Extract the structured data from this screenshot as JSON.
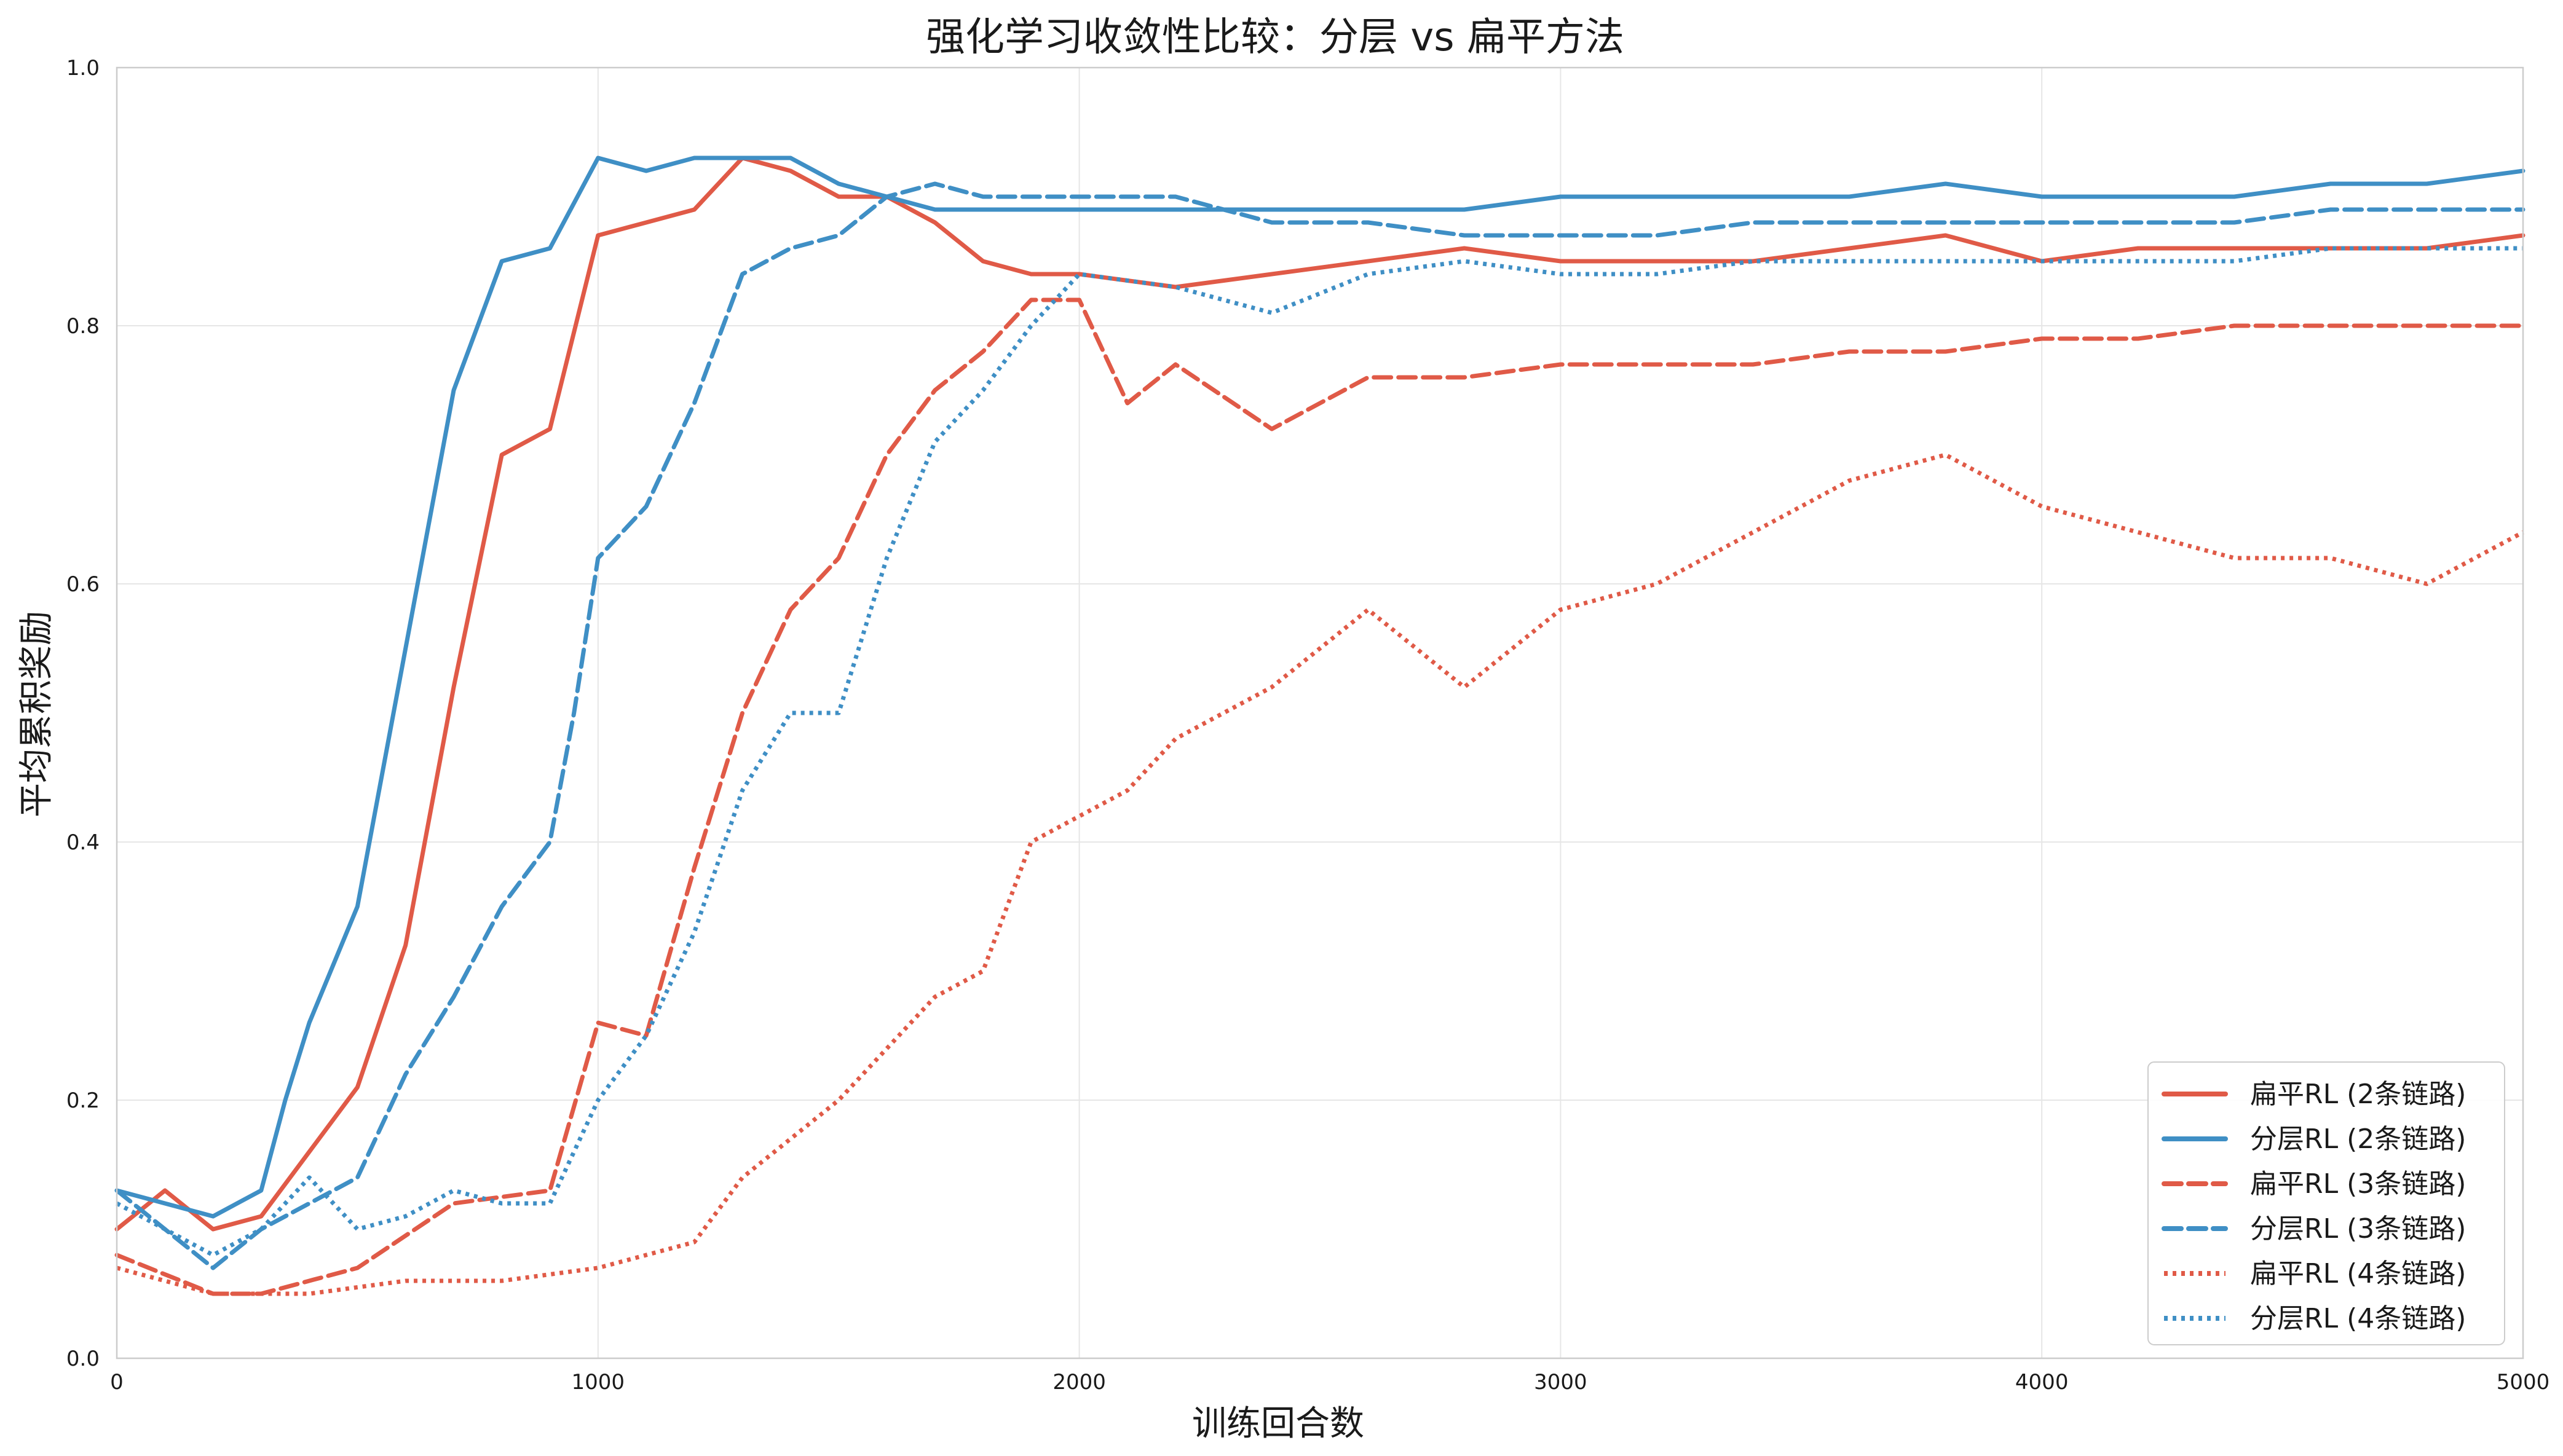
{
  "chart_data": {
    "type": "line",
    "title": "强化学习收敛性比较：分层 vs 扁平方法",
    "xlabel": "训练回合数",
    "ylabel": "平均累积奖励",
    "xlim": [
      0,
      5000
    ],
    "ylim": [
      0.0,
      1.0
    ],
    "xticks": [
      "0",
      "1000",
      "2000",
      "3000",
      "4000",
      "5000"
    ],
    "yticks": [
      "0.0",
      "0.2",
      "0.4",
      "0.6",
      "0.8",
      "1.0"
    ],
    "grid": true,
    "legend_position": "lower-right",
    "series": [
      {
        "name": "扁平RL (2条链路)",
        "color": "#e05a47",
        "dash": "solid",
        "points": [
          [
            0,
            0.1
          ],
          [
            100,
            0.13
          ],
          [
            200,
            0.1
          ],
          [
            300,
            0.11
          ],
          [
            400,
            0.16
          ],
          [
            500,
            0.21
          ],
          [
            600,
            0.32
          ],
          [
            700,
            0.52
          ],
          [
            800,
            0.7
          ],
          [
            900,
            0.72
          ],
          [
            1000,
            0.87
          ],
          [
            1100,
            0.88
          ],
          [
            1200,
            0.89
          ],
          [
            1300,
            0.93
          ],
          [
            1400,
            0.92
          ],
          [
            1500,
            0.9
          ],
          [
            1600,
            0.9
          ],
          [
            1700,
            0.88
          ],
          [
            1800,
            0.85
          ],
          [
            1900,
            0.84
          ],
          [
            2000,
            0.84
          ],
          [
            2200,
            0.83
          ],
          [
            2400,
            0.84
          ],
          [
            2600,
            0.85
          ],
          [
            2800,
            0.86
          ],
          [
            3000,
            0.85
          ],
          [
            3200,
            0.85
          ],
          [
            3400,
            0.85
          ],
          [
            3600,
            0.86
          ],
          [
            3800,
            0.87
          ],
          [
            4000,
            0.85
          ],
          [
            4200,
            0.86
          ],
          [
            4400,
            0.86
          ],
          [
            4600,
            0.86
          ],
          [
            4800,
            0.86
          ],
          [
            5000,
            0.87
          ]
        ]
      },
      {
        "name": "分层RL (2条链路)",
        "color": "#3f8fc5",
        "dash": "solid",
        "points": [
          [
            0,
            0.13
          ],
          [
            100,
            0.12
          ],
          [
            200,
            0.11
          ],
          [
            300,
            0.13
          ],
          [
            350,
            0.2
          ],
          [
            400,
            0.26
          ],
          [
            500,
            0.35
          ],
          [
            600,
            0.55
          ],
          [
            700,
            0.75
          ],
          [
            800,
            0.85
          ],
          [
            900,
            0.86
          ],
          [
            1000,
            0.93
          ],
          [
            1100,
            0.92
          ],
          [
            1200,
            0.93
          ],
          [
            1300,
            0.93
          ],
          [
            1400,
            0.93
          ],
          [
            1500,
            0.91
          ],
          [
            1600,
            0.9
          ],
          [
            1700,
            0.89
          ],
          [
            1800,
            0.89
          ],
          [
            2000,
            0.89
          ],
          [
            2200,
            0.89
          ],
          [
            2400,
            0.89
          ],
          [
            2600,
            0.89
          ],
          [
            2800,
            0.89
          ],
          [
            3000,
            0.9
          ],
          [
            3200,
            0.9
          ],
          [
            3400,
            0.9
          ],
          [
            3600,
            0.9
          ],
          [
            3800,
            0.91
          ],
          [
            4000,
            0.9
          ],
          [
            4200,
            0.9
          ],
          [
            4400,
            0.9
          ],
          [
            4600,
            0.91
          ],
          [
            4800,
            0.91
          ],
          [
            5000,
            0.92
          ]
        ]
      },
      {
        "name": "扁平RL (3条链路)",
        "color": "#e05a47",
        "dash": "dashed",
        "points": [
          [
            0,
            0.08
          ],
          [
            200,
            0.05
          ],
          [
            300,
            0.05
          ],
          [
            500,
            0.07
          ],
          [
            700,
            0.12
          ],
          [
            900,
            0.13
          ],
          [
            1000,
            0.26
          ],
          [
            1100,
            0.25
          ],
          [
            1200,
            0.38
          ],
          [
            1300,
            0.5
          ],
          [
            1400,
            0.58
          ],
          [
            1500,
            0.62
          ],
          [
            1600,
            0.7
          ],
          [
            1700,
            0.75
          ],
          [
            1800,
            0.78
          ],
          [
            1900,
            0.82
          ],
          [
            2000,
            0.82
          ],
          [
            2100,
            0.74
          ],
          [
            2200,
            0.77
          ],
          [
            2400,
            0.72
          ],
          [
            2600,
            0.76
          ],
          [
            2800,
            0.76
          ],
          [
            3000,
            0.77
          ],
          [
            3200,
            0.77
          ],
          [
            3400,
            0.77
          ],
          [
            3600,
            0.78
          ],
          [
            3800,
            0.78
          ],
          [
            4000,
            0.79
          ],
          [
            4200,
            0.79
          ],
          [
            4400,
            0.8
          ],
          [
            4600,
            0.8
          ],
          [
            4800,
            0.8
          ],
          [
            5000,
            0.8
          ]
        ]
      },
      {
        "name": "分层RL (3条链路)",
        "color": "#3f8fc5",
        "dash": "dashed",
        "points": [
          [
            0,
            0.13
          ],
          [
            100,
            0.1
          ],
          [
            200,
            0.07
          ],
          [
            300,
            0.1
          ],
          [
            400,
            0.12
          ],
          [
            500,
            0.14
          ],
          [
            600,
            0.22
          ],
          [
            700,
            0.28
          ],
          [
            800,
            0.35
          ],
          [
            900,
            0.4
          ],
          [
            950,
            0.5
          ],
          [
            1000,
            0.62
          ],
          [
            1100,
            0.66
          ],
          [
            1200,
            0.74
          ],
          [
            1300,
            0.84
          ],
          [
            1400,
            0.86
          ],
          [
            1500,
            0.87
          ],
          [
            1600,
            0.9
          ],
          [
            1700,
            0.91
          ],
          [
            1800,
            0.9
          ],
          [
            2000,
            0.9
          ],
          [
            2200,
            0.9
          ],
          [
            2400,
            0.88
          ],
          [
            2600,
            0.88
          ],
          [
            2800,
            0.87
          ],
          [
            3000,
            0.87
          ],
          [
            3200,
            0.87
          ],
          [
            3400,
            0.88
          ],
          [
            3600,
            0.88
          ],
          [
            3800,
            0.88
          ],
          [
            4000,
            0.88
          ],
          [
            4200,
            0.88
          ],
          [
            4400,
            0.88
          ],
          [
            4600,
            0.89
          ],
          [
            4800,
            0.89
          ],
          [
            5000,
            0.89
          ]
        ]
      },
      {
        "name": "扁平RL (4条链路)",
        "color": "#e05a47",
        "dash": "dotted",
        "points": [
          [
            0,
            0.07
          ],
          [
            200,
            0.05
          ],
          [
            400,
            0.05
          ],
          [
            600,
            0.06
          ],
          [
            800,
            0.06
          ],
          [
            1000,
            0.07
          ],
          [
            1200,
            0.09
          ],
          [
            1300,
            0.14
          ],
          [
            1400,
            0.17
          ],
          [
            1500,
            0.2
          ],
          [
            1600,
            0.24
          ],
          [
            1700,
            0.28
          ],
          [
            1800,
            0.3
          ],
          [
            1900,
            0.4
          ],
          [
            2000,
            0.42
          ],
          [
            2100,
            0.44
          ],
          [
            2200,
            0.48
          ],
          [
            2300,
            0.5
          ],
          [
            2400,
            0.52
          ],
          [
            2600,
            0.58
          ],
          [
            2800,
            0.52
          ],
          [
            3000,
            0.58
          ],
          [
            3200,
            0.6
          ],
          [
            3400,
            0.64
          ],
          [
            3600,
            0.68
          ],
          [
            3800,
            0.7
          ],
          [
            4000,
            0.66
          ],
          [
            4200,
            0.64
          ],
          [
            4400,
            0.62
          ],
          [
            4600,
            0.62
          ],
          [
            4800,
            0.6
          ],
          [
            5000,
            0.64
          ]
        ]
      },
      {
        "name": "分层RL (4条链路)",
        "color": "#3f8fc5",
        "dash": "dotted",
        "points": [
          [
            0,
            0.12
          ],
          [
            200,
            0.08
          ],
          [
            300,
            0.1
          ],
          [
            400,
            0.14
          ],
          [
            500,
            0.1
          ],
          [
            600,
            0.11
          ],
          [
            700,
            0.13
          ],
          [
            800,
            0.12
          ],
          [
            900,
            0.12
          ],
          [
            1000,
            0.2
          ],
          [
            1100,
            0.25
          ],
          [
            1200,
            0.33
          ],
          [
            1300,
            0.44
          ],
          [
            1400,
            0.5
          ],
          [
            1500,
            0.5
          ],
          [
            1600,
            0.62
          ],
          [
            1700,
            0.71
          ],
          [
            1800,
            0.75
          ],
          [
            1900,
            0.8
          ],
          [
            2000,
            0.84
          ],
          [
            2200,
            0.83
          ],
          [
            2400,
            0.81
          ],
          [
            2600,
            0.84
          ],
          [
            2800,
            0.85
          ],
          [
            3000,
            0.84
          ],
          [
            3200,
            0.84
          ],
          [
            3400,
            0.85
          ],
          [
            3600,
            0.85
          ],
          [
            3800,
            0.85
          ],
          [
            4000,
            0.85
          ],
          [
            4200,
            0.85
          ],
          [
            4400,
            0.85
          ],
          [
            4600,
            0.86
          ],
          [
            4800,
            0.86
          ],
          [
            5000,
            0.86
          ]
        ]
      }
    ]
  }
}
